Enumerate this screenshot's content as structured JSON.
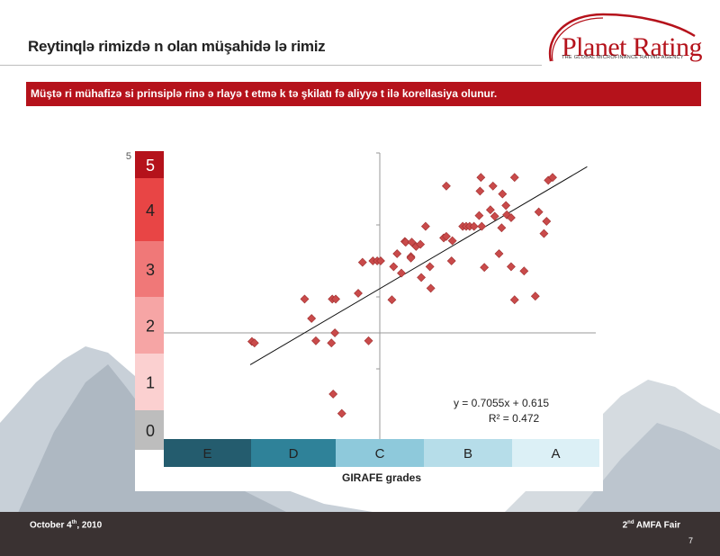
{
  "slide": {
    "title": "Reytinqlə rimizdə n olan müşahidə lə rimiz",
    "banner": "Müştə ri mühafizə si prinsiplə rinə ə rlayə t etmə k tə şkilatı fə aliyyə t ilə  korellasiya olunur."
  },
  "logo": {
    "name": "Planet Rating",
    "tagline": "THE GLOBAL MICROFINANCE RATING AGENCY"
  },
  "footer": {
    "date": "October 4",
    "date_sup": "th",
    "date_year": ", 2010",
    "event_num": "2",
    "event_sup": "nd",
    "event_name": " AMFA Fair",
    "page": "7"
  },
  "chart_data": {
    "type": "scatter",
    "xlabel": "GIRAFE grades",
    "ylabel": "",
    "y_scale": [
      {
        "label": "5",
        "color": "#b5121b"
      },
      {
        "label": "4",
        "color": "#e84545"
      },
      {
        "label": "3",
        "color": "#f07878"
      },
      {
        "label": "2",
        "color": "#f6a5a5"
      },
      {
        "label": "1",
        "color": "#fbd0d0"
      },
      {
        "label": "0",
        "color": "#bdbdbd"
      }
    ],
    "y_axis_top_label": "5",
    "x_grades": [
      {
        "label": "E",
        "color": "#245c6e"
      },
      {
        "label": "D",
        "color": "#2f8299"
      },
      {
        "label": "C",
        "color": "#8ec9db"
      },
      {
        "label": "B",
        "color": "#b6dde9"
      },
      {
        "label": "A",
        "color": "#dcf0f6"
      }
    ],
    "xlim": [
      -2.5,
      2.5
    ],
    "ylim": [
      -1.5,
      2.5
    ],
    "trendline": {
      "equation": "y = 0.7055x + 0.615",
      "r2": "R² = 0.472",
      "slope": 0.7055,
      "intercept": 0.615
    },
    "points": [
      [
        -1.48,
        -0.12
      ],
      [
        -1.45,
        -0.14
      ],
      [
        -0.87,
        0.47
      ],
      [
        -0.74,
        -0.11
      ],
      [
        -0.79,
        0.2
      ],
      [
        -0.56,
        -0.14
      ],
      [
        -0.52,
        0.0
      ],
      [
        -0.55,
        0.47
      ],
      [
        -0.51,
        0.47
      ],
      [
        -0.54,
        -0.85
      ],
      [
        -0.44,
        -1.12
      ],
      [
        -0.25,
        0.55
      ],
      [
        -0.2,
        0.98
      ],
      [
        -0.13,
        -0.11
      ],
      [
        -0.08,
        1.0
      ],
      [
        -0.03,
        1.0
      ],
      [
        0.01,
        1.0
      ],
      [
        0.14,
        0.46
      ],
      [
        0.16,
        0.92
      ],
      [
        0.2,
        1.1
      ],
      [
        0.25,
        0.83
      ],
      [
        0.29,
        1.27
      ],
      [
        0.36,
        1.06
      ],
      [
        0.3,
        1.26
      ],
      [
        0.36,
        1.04
      ],
      [
        0.37,
        1.26
      ],
      [
        0.42,
        1.2
      ],
      [
        0.47,
        1.23
      ],
      [
        0.53,
        1.48
      ],
      [
        0.59,
        0.62
      ],
      [
        0.48,
        0.77
      ],
      [
        0.58,
        0.92
      ],
      [
        0.77,
        2.04
      ],
      [
        0.74,
        1.32
      ],
      [
        0.77,
        1.34
      ],
      [
        0.84,
        1.28
      ],
      [
        0.96,
        1.48
      ],
      [
        1.0,
        1.48
      ],
      [
        1.04,
        1.48
      ],
      [
        1.09,
        1.48
      ],
      [
        1.15,
        1.63
      ],
      [
        1.21,
        0.91
      ],
      [
        1.17,
        2.16
      ],
      [
        1.38,
        1.1
      ],
      [
        1.41,
        1.46
      ],
      [
        1.47,
        1.64
      ],
      [
        1.52,
        0.92
      ],
      [
        1.28,
        1.71
      ],
      [
        1.31,
        2.04
      ],
      [
        1.33,
        1.62
      ],
      [
        1.42,
        1.93
      ],
      [
        1.46,
        1.77
      ],
      [
        1.56,
        2.16
      ],
      [
        1.52,
        1.6
      ],
      [
        1.67,
        0.86
      ],
      [
        1.84,
        1.68
      ],
      [
        1.9,
        1.38
      ],
      [
        1.93,
        1.55
      ],
      [
        1.95,
        2.12
      ],
      [
        2.0,
        2.16
      ],
      [
        1.56,
        0.46
      ],
      [
        1.8,
        0.51
      ],
      [
        0.83,
        1.0
      ],
      [
        1.18,
        1.48
      ],
      [
        1.16,
        1.97
      ]
    ]
  }
}
